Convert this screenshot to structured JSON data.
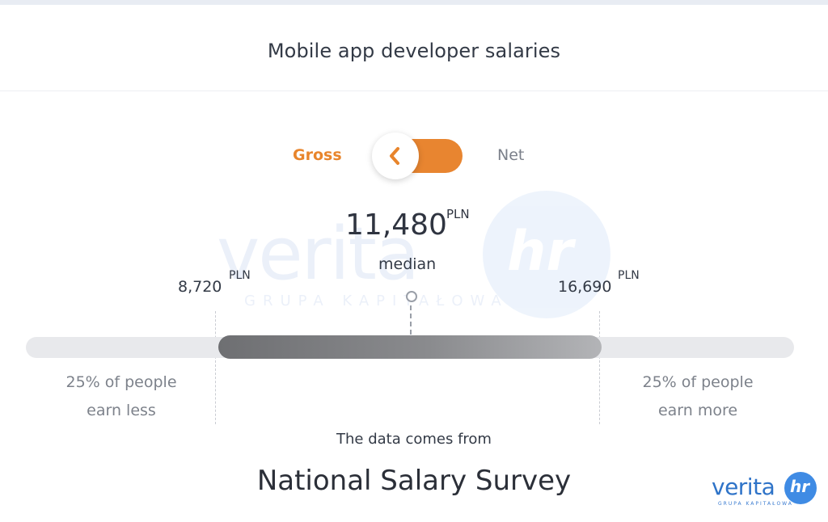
{
  "header": {
    "title": "Mobile app developer salaries"
  },
  "toggle": {
    "left_label": "Gross",
    "right_label": "Net",
    "selected": "Gross",
    "accent_color": "#e8852c"
  },
  "salary": {
    "median_value": "11,480",
    "median_unit": "PLN",
    "median_label": "median",
    "q1_value": "8,720",
    "q1_unit": "PLN",
    "q3_value": "16,690",
    "q3_unit": "PLN",
    "below_text_line1": "25% of people",
    "below_text_line2": "earn less",
    "above_text_line1": "25% of people",
    "above_text_line2": "earn more"
  },
  "source": {
    "intro": "The data comes from",
    "name": "National Salary Survey"
  },
  "logo": {
    "word": "verita",
    "mark": "hr",
    "subtitle": "GRUPA KAPITAŁOWA",
    "color": "#2e73c8"
  },
  "watermark": {
    "word": "verita",
    "mark": "hr",
    "subtitle": "GRUPA KAPITAŁOWA"
  },
  "icons": {
    "toggle_knob": "chevron-left-icon",
    "median_marker": "circle-marker-icon"
  }
}
